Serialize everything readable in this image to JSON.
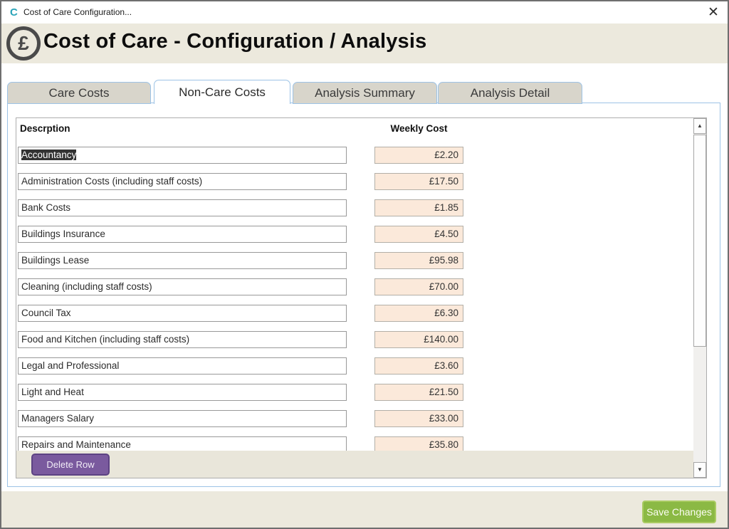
{
  "window": {
    "title": "Cost of Care Configuration...",
    "app_icon_letter": "C",
    "close_glyph": "✕"
  },
  "header": {
    "icon_glyph": "£",
    "title": "Cost of Care - Configuration / Analysis"
  },
  "tabs": [
    {
      "label": "Care Costs",
      "active": false
    },
    {
      "label": "Non-Care Costs",
      "active": true
    },
    {
      "label": "Analysis Summary",
      "active": false
    },
    {
      "label": "Analysis Detail",
      "active": false
    }
  ],
  "table": {
    "columns": [
      "Descrption",
      "Weekly Cost"
    ],
    "rows": [
      {
        "description": "Accountancy",
        "weekly_cost": "£2.20",
        "selected": true
      },
      {
        "description": "Administration Costs (including staff costs)",
        "weekly_cost": "£17.50",
        "selected": false
      },
      {
        "description": "Bank Costs",
        "weekly_cost": "£1.85",
        "selected": false
      },
      {
        "description": "Buildings Insurance",
        "weekly_cost": "£4.50",
        "selected": false
      },
      {
        "description": "Buildings Lease",
        "weekly_cost": "£95.98",
        "selected": false
      },
      {
        "description": "Cleaning (including staff costs)",
        "weekly_cost": "£70.00",
        "selected": false
      },
      {
        "description": "Council Tax",
        "weekly_cost": "£6.30",
        "selected": false
      },
      {
        "description": "Food and Kitchen (including staff costs)",
        "weekly_cost": "£140.00",
        "selected": false
      },
      {
        "description": "Legal and Professional",
        "weekly_cost": "£3.60",
        "selected": false
      },
      {
        "description": "Light and Heat",
        "weekly_cost": "£21.50",
        "selected": false
      },
      {
        "description": "Managers Salary",
        "weekly_cost": "£33.00",
        "selected": false
      },
      {
        "description": "Repairs and Maintenance",
        "weekly_cost": "£35.80",
        "selected": false
      }
    ]
  },
  "buttons": {
    "delete_row": "Delete Row",
    "save_changes": "Save Changes"
  },
  "scrollbar": {
    "up_glyph": "▲",
    "down_glyph": "▼"
  },
  "colors": {
    "beige_band": "#ece9dd",
    "tab_border_blue": "#9dc3e6",
    "inactive_tab": "#d8d5cb",
    "cost_field_peach": "#fbe9da",
    "delete_button_purple": "#7a5a9e",
    "save_button_green": "#8bb944",
    "app_icon_teal": "#29a3b8",
    "selection_dark": "#333333"
  }
}
